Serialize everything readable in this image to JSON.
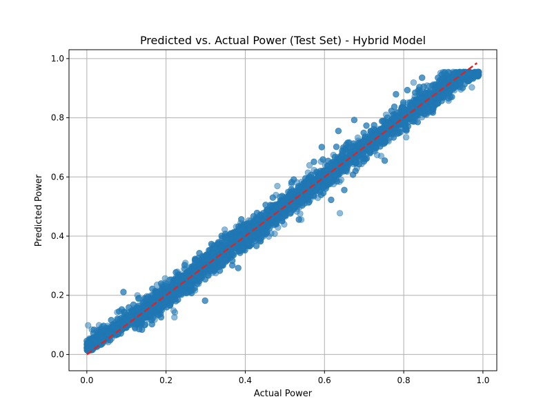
{
  "chart_data": {
    "type": "scatter",
    "title": "Predicted vs. Actual Power (Test Set) - Hybrid Model",
    "xlabel": "Actual Power",
    "ylabel": "Predicted Power",
    "xlim": [
      -0.045,
      1.035
    ],
    "ylim": [
      -0.055,
      1.03
    ],
    "xticks": [
      0.0,
      0.2,
      0.4,
      0.6,
      0.8,
      1.0
    ],
    "yticks": [
      0.0,
      0.2,
      0.4,
      0.6,
      0.8,
      1.0
    ],
    "xtick_labels": [
      "0.0",
      "0.2",
      "0.4",
      "0.6",
      "0.8",
      "1.0"
    ],
    "ytick_labels": [
      "0.0",
      "0.2",
      "0.4",
      "0.6",
      "0.8",
      "1.0"
    ],
    "grid": true,
    "legend": "none",
    "series": [
      {
        "type": "scatter",
        "color": "#1f77b4",
        "alpha": 0.5,
        "point_count_estimate": 6000,
        "description_values": {
          "x_range": [
            0.0,
            0.99
          ],
          "relationship": "predicted ≈ actual",
          "spread_std": 0.025,
          "intercept_near_zero": 0.025
        }
      },
      {
        "type": "line",
        "style": "dashed",
        "color": "#d62728",
        "x": [
          0.0,
          0.985
        ],
        "y": [
          0.0,
          0.985
        ]
      }
    ]
  }
}
